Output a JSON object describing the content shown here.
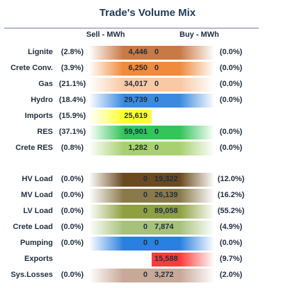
{
  "title": "Trade's Volume Mix",
  "headers": {
    "sell": "Sell - MWh",
    "buy": "Buy - MWh"
  },
  "colors": {
    "lignite": "#c87a45",
    "crete_conv": "#f08a3c",
    "gas": "#f7c9a5",
    "hydro": "#3a8be0",
    "imports": "#ffff33",
    "res": "#33c45a",
    "crete_res": "#a8d070",
    "hv_load": "#6b4a1f",
    "mv_load": "#8a7a4a",
    "lv_load": "#8ea040",
    "crete_load": "#a6c27a",
    "pumping": "#2a80e0",
    "exports": "#ff3a3a",
    "sys_losses": "#c8a898"
  },
  "rows": [
    {
      "label": "Lignite",
      "sell_pct": "(2.8%)",
      "sell_val": "4,446",
      "buy_val": "0",
      "buy_pct": "(0.0%)"
    },
    {
      "label": "Crete Conv.",
      "sell_pct": "(3.9%)",
      "sell_val": "6,250",
      "buy_val": "0",
      "buy_pct": "(0.0%)"
    },
    {
      "label": "Gas",
      "sell_pct": "(21.1%)",
      "sell_val": "34,017",
      "buy_val": "0",
      "buy_pct": "(0.0%)"
    },
    {
      "label": "Hydro",
      "sell_pct": "(18.4%)",
      "sell_val": "29,739",
      "buy_val": "0",
      "buy_pct": "(0.0%)"
    },
    {
      "label": "Imports",
      "sell_pct": "(15.9%)",
      "sell_val": "25,619",
      "buy_val": "",
      "buy_pct": ""
    },
    {
      "label": "RES",
      "sell_pct": "(37.1%)",
      "sell_val": "59,901",
      "buy_val": "0",
      "buy_pct": "(0.0%)"
    },
    {
      "label": "Crete RES",
      "sell_pct": "(0.8%)",
      "sell_val": "1,282",
      "buy_val": "0",
      "buy_pct": "(0.0%)"
    },
    {
      "label": "HV Load",
      "sell_pct": "(0.0%)",
      "sell_val": "0",
      "buy_val": "19,322",
      "buy_pct": "(12.0%)"
    },
    {
      "label": "MV Load",
      "sell_pct": "(0.0%)",
      "sell_val": "0",
      "buy_val": "26,139",
      "buy_pct": "(16.2%)"
    },
    {
      "label": "LV Load",
      "sell_pct": "(0.0%)",
      "sell_val": "0",
      "buy_val": "89,058",
      "buy_pct": "(55.2%)"
    },
    {
      "label": "Crete Load",
      "sell_pct": "(0.0%)",
      "sell_val": "0",
      "buy_val": "7,874",
      "buy_pct": "(4.9%)"
    },
    {
      "label": "Pumping",
      "sell_pct": "(0.0%)",
      "sell_val": "0",
      "buy_val": "0",
      "buy_pct": "(0.0%)"
    },
    {
      "label": "Exports",
      "sell_pct": "",
      "sell_val": "",
      "buy_val": "15,588",
      "buy_pct": "(9.7%)"
    },
    {
      "label": "Sys.Losses",
      "sell_pct": "(0.0%)",
      "sell_val": "0",
      "buy_val": "3,272",
      "buy_pct": "(2.0%)"
    }
  ]
}
